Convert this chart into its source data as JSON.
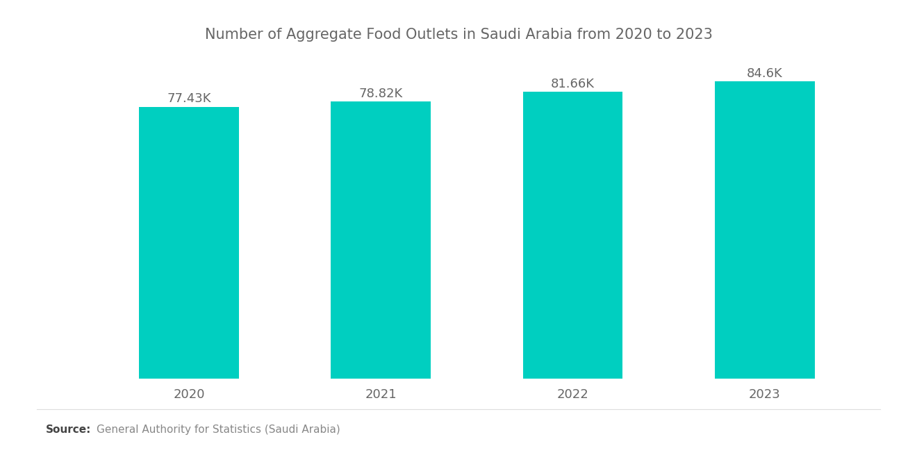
{
  "title": "Number of Aggregate Food Outlets in Saudi Arabia from 2020 to 2023",
  "categories": [
    "2020",
    "2021",
    "2022",
    "2023"
  ],
  "values": [
    77430,
    78820,
    81660,
    84600
  ],
  "labels": [
    "77.43K",
    "78.82K",
    "81.66K",
    "84.6K"
  ],
  "bar_color": "#00CFC0",
  "background_color": "#FFFFFF",
  "title_color": "#666666",
  "label_color": "#666666",
  "xlabel_color": "#666666",
  "source_bold": "Source:",
  "source_text": "General Authority for Statistics (Saudi Arabia)",
  "ylim_min": 0,
  "ylim_max": 92000,
  "title_fontsize": 15,
  "label_fontsize": 13,
  "tick_fontsize": 13,
  "source_fontsize": 11,
  "bar_width": 0.52
}
